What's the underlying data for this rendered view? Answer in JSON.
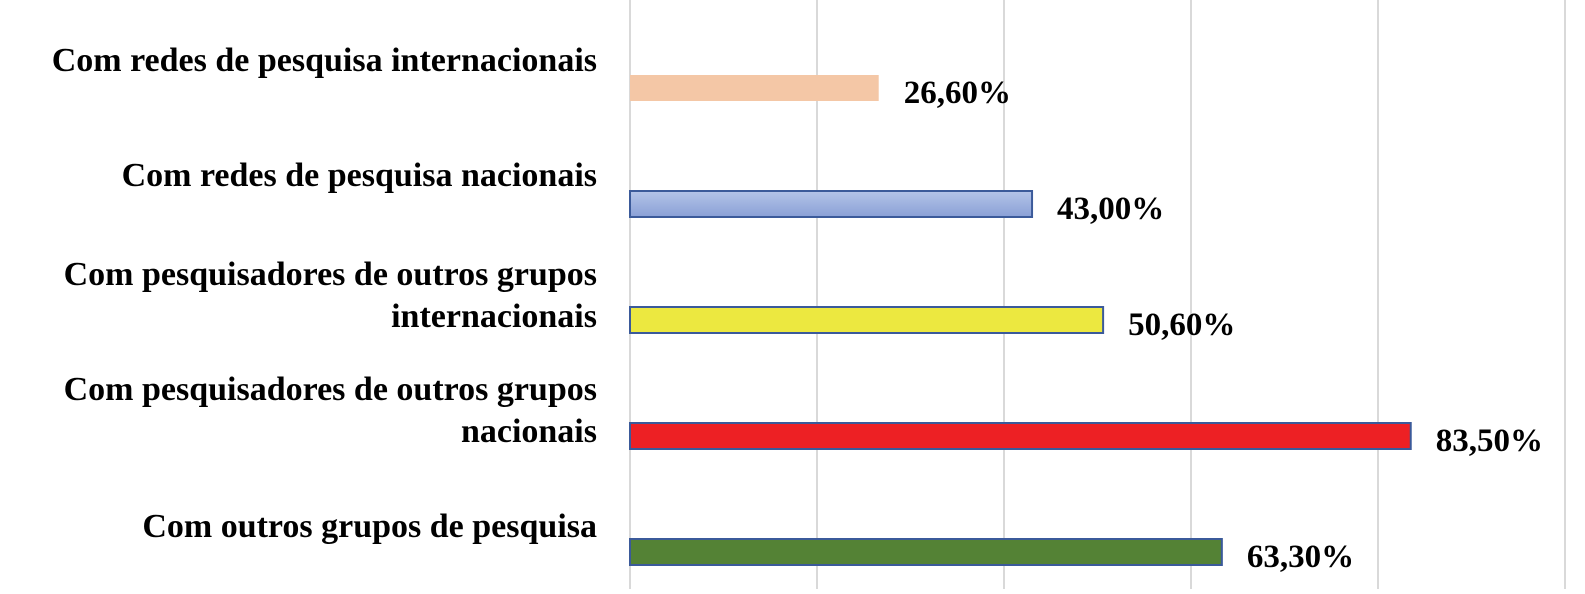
{
  "chart_data": {
    "type": "bar",
    "orientation": "horizontal",
    "categories": [
      "Com redes de pesquisa internacionais",
      "Com redes de pesquisa nacionais",
      "Com pesquisadores de outros grupos internacionais",
      "Com pesquisadores de outros grupos nacionais",
      "Com outros grupos de pesquisa"
    ],
    "category_lines": [
      [
        "Com redes de pesquisa internacionais"
      ],
      [
        "Com redes de pesquisa nacionais"
      ],
      [
        "Com pesquisadores de outros grupos",
        "internacionais"
      ],
      [
        "Com pesquisadores de outros grupos",
        "nacionais"
      ],
      [
        "Com outros grupos de pesquisa"
      ]
    ],
    "values": [
      26.6,
      43.0,
      50.6,
      83.5,
      63.3
    ],
    "value_labels": [
      "26,60%",
      "43,00%",
      "50,60%",
      "83,50%",
      "63,30%"
    ],
    "colors": [
      "#f4c7a6",
      "#9aaedd",
      "#ece840",
      "#ed2024",
      "#548235"
    ],
    "border_color": "#3b5a9a",
    "xlim": [
      0,
      100
    ],
    "grid": true,
    "title": "",
    "xlabel": "",
    "ylabel": ""
  }
}
